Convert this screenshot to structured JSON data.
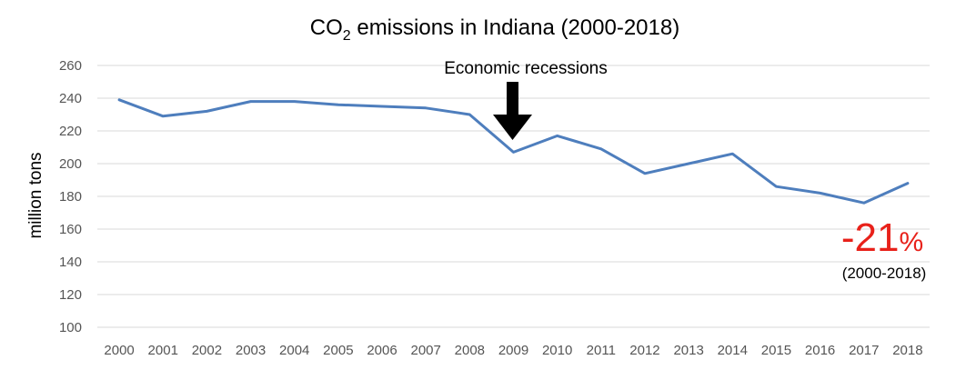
{
  "chart_data": {
    "type": "line",
    "title_prefix": "CO",
    "title_subscript": "2",
    "title_suffix": " emissions in Indiana (2000-2018)",
    "ylabel": "million tons",
    "xlabel": "",
    "ylim": [
      100,
      260
    ],
    "yticks": [
      100,
      120,
      140,
      160,
      180,
      200,
      220,
      240,
      260
    ],
    "grid": true,
    "x": [
      "2000",
      "2001",
      "2002",
      "2003",
      "2004",
      "2005",
      "2006",
      "2007",
      "2008",
      "2009",
      "2010",
      "2011",
      "2012",
      "2013",
      "2014",
      "2015",
      "2016",
      "2017",
      "2018"
    ],
    "series": [
      {
        "values": [
          239,
          229,
          232,
          238,
          238,
          236,
          235,
          234,
          230,
          207,
          217,
          209,
          194,
          200,
          206,
          186,
          182,
          176,
          188
        ]
      }
    ],
    "annotations": {
      "recession_label": "Economic recessions",
      "recession_year": "2009",
      "change_number": "-21",
      "change_sign": "%",
      "change_range": "(2000-2018)"
    }
  },
  "colors": {
    "line": "#4e7ebd",
    "highlight": "#e8211a",
    "grid": "#d9d9d9"
  }
}
